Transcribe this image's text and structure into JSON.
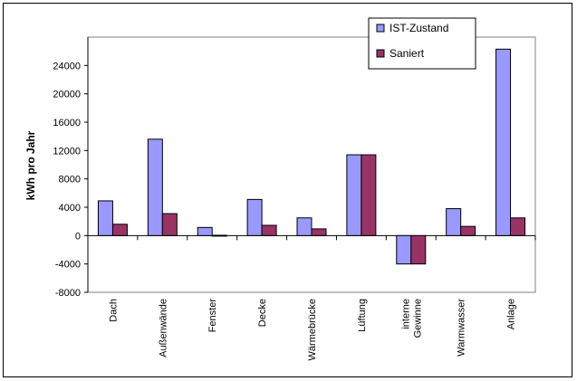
{
  "chart_data": {
    "type": "bar",
    "title": "",
    "xlabel": "",
    "ylabel": "kWh pro Jahr",
    "ylim": [
      -8000,
      28000
    ],
    "yticks": [
      -8000,
      -4000,
      0,
      4000,
      8000,
      12000,
      16000,
      20000,
      24000
    ],
    "grid": false,
    "legend_position": "top-right",
    "categories": [
      "Dach",
      "Außenwände",
      "Fenster",
      "Decke",
      "Wärmebrücke",
      "Lüftung",
      "interne Gewinne",
      "Warmwasser",
      "Anlage"
    ],
    "category_lines": [
      [
        "Dach"
      ],
      [
        "Außenwände"
      ],
      [
        "Fenster"
      ],
      [
        "Decke"
      ],
      [
        "Wärmebrücke"
      ],
      [
        "Lüftung"
      ],
      [
        "interne",
        "Gewinne"
      ],
      [
        "Warmwasser"
      ],
      [
        "Anlage"
      ]
    ],
    "series": [
      {
        "name": "IST-Zustand",
        "color": "#9999ff",
        "values": [
          4900,
          13600,
          1150,
          5100,
          2500,
          11400,
          -4000,
          3800,
          26300
        ]
      },
      {
        "name": "Saniert",
        "color": "#993366",
        "values": [
          1600,
          3100,
          50,
          1450,
          950,
          11400,
          -4000,
          1300,
          2500
        ]
      }
    ]
  }
}
